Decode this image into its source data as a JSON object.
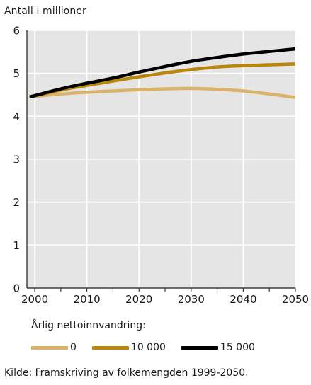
{
  "chart_data": {
    "type": "line",
    "ylabel": "Antall i millioner",
    "xlim": [
      1998.5,
      2050
    ],
    "ylim": [
      0,
      6
    ],
    "x_ticks": [
      2000,
      2010,
      2020,
      2030,
      2040,
      2050
    ],
    "y_ticks": [
      0,
      1,
      2,
      3,
      4,
      5,
      6
    ],
    "grid": true,
    "x": [
      1999,
      2005,
      2010,
      2015,
      2020,
      2025,
      2030,
      2035,
      2040,
      2045,
      2050
    ],
    "series": [
      {
        "name": "0",
        "color": "#d9b36a",
        "values": [
          4.45,
          4.52,
          4.56,
          4.59,
          4.62,
          4.64,
          4.65,
          4.63,
          4.59,
          4.52,
          4.44
        ]
      },
      {
        "name": "10 000",
        "color": "#b8860b",
        "values": [
          4.45,
          4.61,
          4.72,
          4.82,
          4.92,
          5.01,
          5.09,
          5.15,
          5.18,
          5.2,
          5.22
        ]
      },
      {
        "name": "15 000",
        "color": "#000000",
        "values": [
          4.45,
          4.64,
          4.77,
          4.89,
          5.03,
          5.16,
          5.28,
          5.37,
          5.45,
          5.51,
          5.57
        ]
      }
    ],
    "legend_title": "Årlig nettoinnvandring:",
    "legend_position": "bottom",
    "source": "Kilde: Framskriving av folkemengden 1999-2050."
  }
}
